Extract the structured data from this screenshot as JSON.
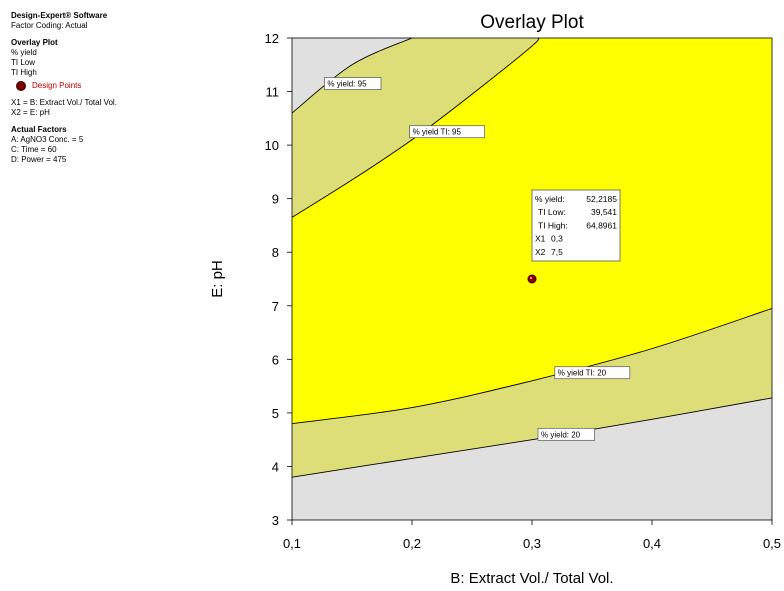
{
  "sidebar": {
    "software": "Design-Expert® Software",
    "coding": "Factor Coding: Actual",
    "overlay_heading": "Overlay Plot",
    "overlay_items": [
      "% yield",
      "TI Low",
      "TI High"
    ],
    "design_points_label": "Design Points",
    "x_assign": [
      "X1 = B: Extract Vol./ Total Vol.",
      "X2 = E: pH"
    ],
    "actual_heading": "Actual Factors",
    "actual_items": [
      "A: AgNO3 Conc. = 5",
      "C: Time = 60",
      "D: Power = 475"
    ]
  },
  "colors": {
    "sufficient": "#ffff00",
    "ci_band": "#dede78",
    "infeasible": "#e0e0e0",
    "design_point": "#8b0000"
  },
  "chart_data": {
    "type": "overlay-contour",
    "title": "Overlay Plot",
    "xlabel": "B: Extract Vol./ Total Vol.",
    "ylabel": "E: pH",
    "xlim": [
      0.1,
      0.5
    ],
    "ylim": [
      3,
      12
    ],
    "xticks": [
      "0,1",
      "0,2",
      "0,3",
      "0,4",
      "0,5"
    ],
    "yticks": [
      "3",
      "4",
      "5",
      "6",
      "7",
      "8",
      "9",
      "10",
      "11",
      "12"
    ],
    "contours": [
      {
        "label": "% yield: 95",
        "points": [
          [
            0.1,
            10.6
          ],
          [
            0.15,
            11.5
          ],
          [
            0.2,
            12
          ]
        ]
      },
      {
        "label": "% yield TI:  95",
        "points": [
          [
            0.1,
            8.65
          ],
          [
            0.15,
            9.35
          ],
          [
            0.2,
            10.1
          ],
          [
            0.25,
            10.95
          ],
          [
            0.3,
            11.85
          ],
          [
            0.305,
            12
          ]
        ]
      },
      {
        "label": "% yield TI:  20",
        "points": [
          [
            0.1,
            4.8
          ],
          [
            0.2,
            5.1
          ],
          [
            0.3,
            5.6
          ],
          [
            0.4,
            6.2
          ],
          [
            0.5,
            6.95
          ]
        ]
      },
      {
        "label": "% yield: 20",
        "points": [
          [
            0.1,
            3.8
          ],
          [
            0.2,
            4.15
          ],
          [
            0.3,
            4.5
          ],
          [
            0.4,
            4.88
          ],
          [
            0.5,
            5.28
          ]
        ]
      }
    ],
    "contour_labels": [
      {
        "text": "% yield: 95",
        "x": 0.127,
        "y": 11.15
      },
      {
        "text": "% yield TI:  95",
        "x": 0.198,
        "y": 10.25
      },
      {
        "text": "% yield TI:  20",
        "x": 0.319,
        "y": 5.75
      },
      {
        "text": "% yield: 20",
        "x": 0.305,
        "y": 4.6
      }
    ],
    "design_point": {
      "x": 0.3,
      "y": 7.5
    },
    "tooltip": [
      {
        "label": "% yield:",
        "value": "52,2185"
      },
      {
        "label": "TI Low:",
        "value": "39,541"
      },
      {
        "label": "TI High:",
        "value": "64,8961"
      },
      {
        "label": "X1",
        "value": "0,3"
      },
      {
        "label": "X2",
        "value": "7,5"
      }
    ]
  }
}
